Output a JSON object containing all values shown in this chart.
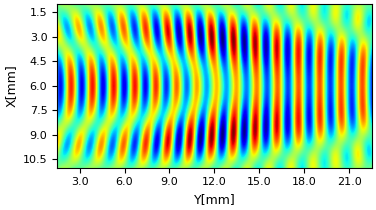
{
  "x_min": 1.0,
  "x_max": 11.0,
  "y_min": 1.5,
  "y_max": 22.5,
  "xlabel": "Y[mm]",
  "ylabel": "X[mm]",
  "xticks": [
    3.0,
    6.0,
    9.0,
    12.0,
    15.0,
    18.0,
    21.0
  ],
  "yticks": [
    1.5,
    3.0,
    4.5,
    6.0,
    7.5,
    9.0,
    10.5
  ],
  "colormap": "jet",
  "nx": 300,
  "ny": 600,
  "figsize": [
    3.76,
    2.1
  ],
  "dpi": 100,
  "xlabel_fontsize": 9,
  "ylabel_fontsize": 9,
  "tick_fontsize": 8
}
